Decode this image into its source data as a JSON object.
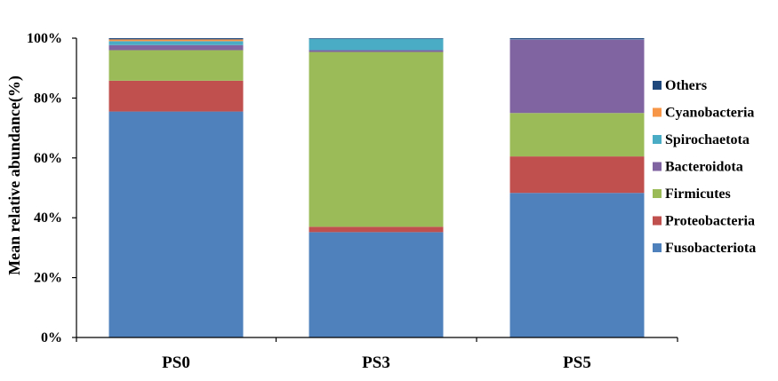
{
  "chart_data": {
    "type": "bar",
    "stacked": true,
    "categories": [
      "PS0",
      "PS3",
      "PS5"
    ],
    "ylabel": "Mean relative abundance(%)",
    "ylim": [
      0,
      100
    ],
    "yticks": [
      "0%",
      "20%",
      "40%",
      "60%",
      "80%",
      "100%"
    ],
    "grid": false,
    "legend_position": "right",
    "series": [
      {
        "name": "Fusobacteriota",
        "color": "#4F81BD",
        "values": [
          75.5,
          35.2,
          48.3
        ]
      },
      {
        "name": "Proteobacteria",
        "color": "#C0504D",
        "values": [
          10.3,
          1.8,
          12.2
        ]
      },
      {
        "name": "Firmicutes",
        "color": "#9BBB59",
        "values": [
          10.2,
          58.4,
          14.5
        ]
      },
      {
        "name": "Bacteroidota",
        "color": "#8064A2",
        "values": [
          1.7,
          0.6,
          24.6
        ]
      },
      {
        "name": "Spirochaetota",
        "color": "#4BACC6",
        "values": [
          1.3,
          3.8,
          0.1
        ]
      },
      {
        "name": "Cyanobacteria",
        "color": "#F79646",
        "values": [
          0.6,
          0.0,
          0.0
        ]
      },
      {
        "name": "Others",
        "color": "#1F497D",
        "values": [
          0.4,
          0.2,
          0.3
        ]
      }
    ],
    "legend_order": [
      "Others",
      "Cyanobacteria",
      "Spirochaetota",
      "Bacteroidota",
      "Firmicutes",
      "Proteobacteria",
      "Fusobacteriota"
    ]
  }
}
